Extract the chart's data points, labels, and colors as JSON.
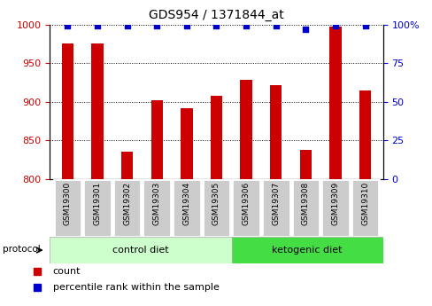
{
  "title": "GDS954 / 1371844_at",
  "samples": [
    "GSM19300",
    "GSM19301",
    "GSM19302",
    "GSM19303",
    "GSM19304",
    "GSM19305",
    "GSM19306",
    "GSM19307",
    "GSM19308",
    "GSM19309",
    "GSM19310"
  ],
  "counts": [
    975,
    975,
    835,
    902,
    892,
    908,
    928,
    921,
    838,
    997,
    915
  ],
  "percentile_ranks": [
    99,
    99,
    99,
    99,
    99,
    99,
    99,
    99,
    97,
    99,
    99
  ],
  "ylim_left": [
    800,
    1000
  ],
  "ylim_right": [
    0,
    100
  ],
  "yticks_left": [
    800,
    850,
    900,
    950,
    1000
  ],
  "yticks_right": [
    0,
    25,
    50,
    75,
    100
  ],
  "bar_color": "#cc0000",
  "marker_color": "#0000cc",
  "plot_bg_color": "#ffffff",
  "n_ctrl": 6,
  "n_keto": 5,
  "control_label": "control diet",
  "ketogenic_label": "ketogenic diet",
  "protocol_label": "protocol",
  "legend_count_label": "count",
  "legend_percentile_label": "percentile rank within the sample",
  "tick_label_color_left": "#cc0000",
  "tick_label_color_right": "#0000cc",
  "bar_width": 0.4,
  "control_bg": "#ccffcc",
  "ketogenic_bg": "#44dd44",
  "sample_box_bg": "#cccccc",
  "sample_box_edge": "#ffffff"
}
